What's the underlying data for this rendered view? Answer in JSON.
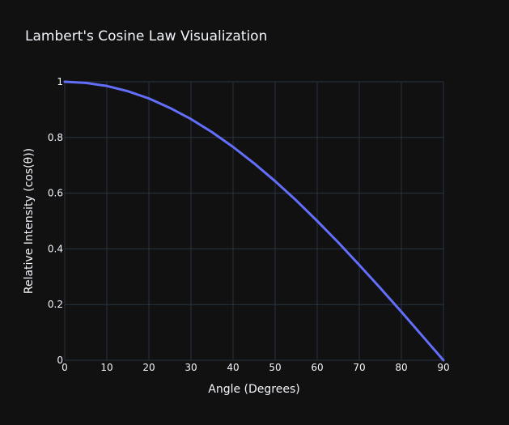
{
  "chart_data": {
    "type": "line",
    "title": "Lambert's Cosine Law Visualization",
    "xlabel": "Angle (Degrees)",
    "ylabel": "Relative Intensity (cos(θ))",
    "xlim": [
      0,
      90
    ],
    "ylim": [
      0,
      1
    ],
    "xticks": [
      0,
      10,
      20,
      30,
      40,
      50,
      60,
      70,
      80,
      90
    ],
    "xtick_labels": [
      "0",
      "10",
      "20",
      "30",
      "40",
      "50",
      "60",
      "70",
      "80",
      "90"
    ],
    "yticks": [
      0,
      0.2,
      0.4,
      0.6,
      0.8,
      1
    ],
    "ytick_labels": [
      "0",
      "0.2",
      "0.4",
      "0.6",
      "0.8",
      "1"
    ],
    "grid": true,
    "series": [
      {
        "color": "#636efa",
        "x": [
          0,
          5,
          10,
          15,
          20,
          25,
          30,
          35,
          40,
          45,
          50,
          55,
          60,
          65,
          70,
          75,
          80,
          85,
          90
        ],
        "values": [
          1,
          0.996,
          0.985,
          0.966,
          0.94,
          0.906,
          0.866,
          0.819,
          0.766,
          0.707,
          0.643,
          0.574,
          0.5,
          0.423,
          0.342,
          0.259,
          0.174,
          0.087,
          0
        ]
      }
    ]
  },
  "colors": {
    "background": "#111111",
    "grid": "#283442",
    "text": "#f2f5fa",
    "line": "#636efa"
  }
}
